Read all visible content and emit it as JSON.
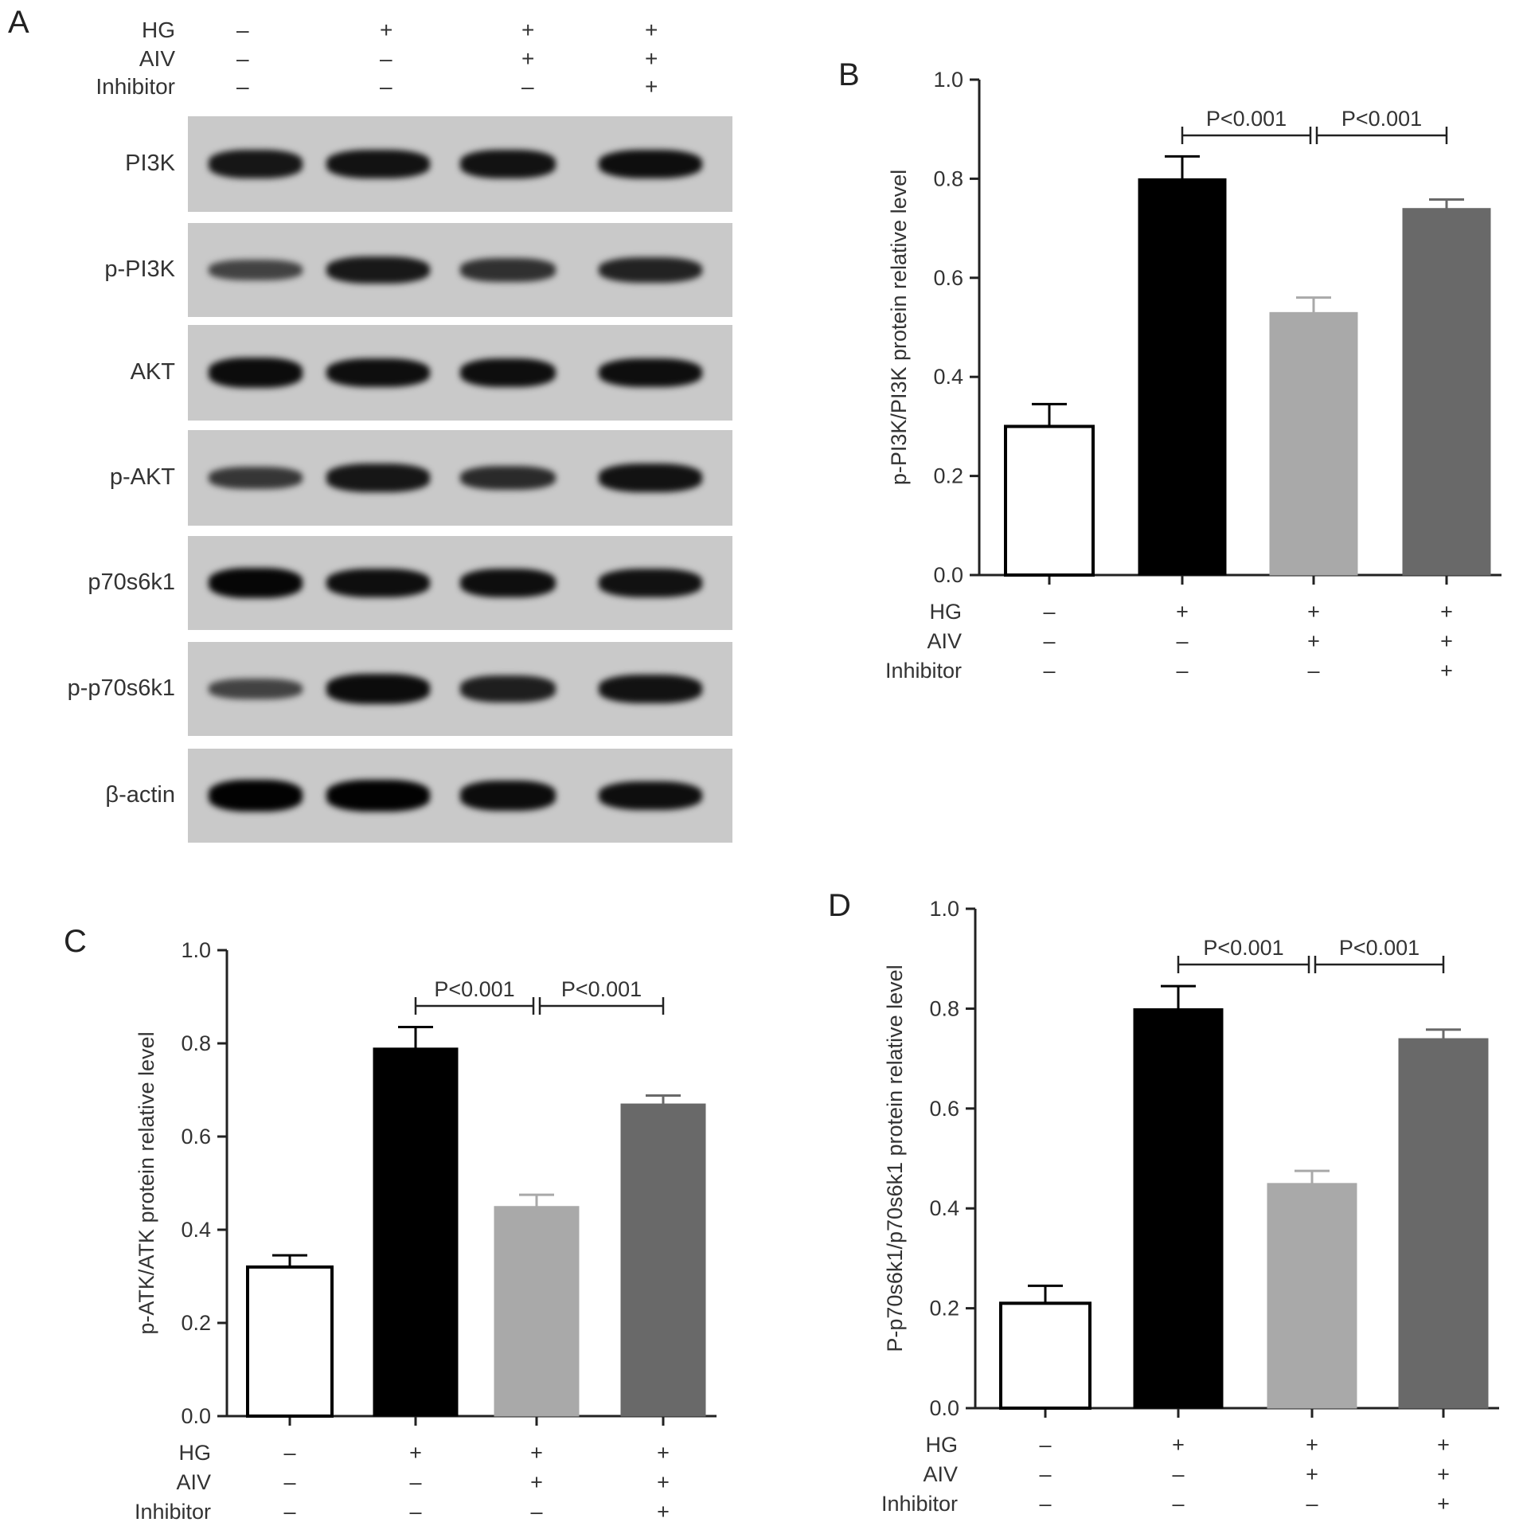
{
  "panel_letters": {
    "a": "A",
    "b": "B",
    "c": "C",
    "d": "D"
  },
  "conditions": {
    "labels": [
      "HG",
      "AIV",
      "Inhibitor"
    ],
    "signs": [
      [
        "–",
        "+",
        "+",
        "+"
      ],
      [
        "–",
        "–",
        "+",
        "+"
      ],
      [
        "–",
        "–",
        "–",
        "+"
      ]
    ]
  },
  "western_blot": {
    "proteins": [
      "PI3K",
      "p-PI3K",
      "AKT",
      "p-AKT",
      "p70s6k1",
      "p-p70s6k1",
      "β-actin"
    ],
    "band_intensity": [
      [
        0.82,
        0.85,
        0.85,
        0.88
      ],
      [
        0.45,
        0.8,
        0.6,
        0.72
      ],
      [
        0.9,
        0.88,
        0.88,
        0.88
      ],
      [
        0.55,
        0.82,
        0.65,
        0.85
      ],
      [
        0.95,
        0.88,
        0.88,
        0.86
      ],
      [
        0.45,
        0.9,
        0.75,
        0.85
      ],
      [
        0.98,
        0.98,
        0.9,
        0.88
      ]
    ]
  },
  "colors": {
    "bar_fills": [
      "#ffffff",
      "#000000",
      "#a9a9a9",
      "#696969"
    ],
    "blot_bg": "#c9c9c9"
  },
  "chart_data": [
    {
      "panel": "B",
      "type": "bar",
      "ylabel": "p-PI3K/PI3K protein relative level",
      "ylim": [
        0,
        1.0
      ],
      "yticks": [
        "0.0",
        "0.2",
        "0.4",
        "0.6",
        "0.8",
        "1.0"
      ],
      "values": [
        0.3,
        0.8,
        0.53,
        0.74
      ],
      "errors": [
        0.045,
        0.045,
        0.03,
        0.018
      ],
      "annotations": [
        {
          "from": 1,
          "to": 2,
          "label": "P<0.001"
        },
        {
          "from": 2,
          "to": 3,
          "label": "P<0.001"
        }
      ]
    },
    {
      "panel": "C",
      "type": "bar",
      "ylabel": "p-ATK/ATK protein relative level",
      "ylim": [
        0,
        1.0
      ],
      "yticks": [
        "0.0",
        "0.2",
        "0.4",
        "0.6",
        "0.8",
        "1.0"
      ],
      "values": [
        0.32,
        0.79,
        0.45,
        0.67
      ],
      "errors": [
        0.025,
        0.045,
        0.025,
        0.018
      ],
      "annotations": [
        {
          "from": 1,
          "to": 2,
          "label": "P<0.001"
        },
        {
          "from": 2,
          "to": 3,
          "label": "P<0.001"
        }
      ]
    },
    {
      "panel": "D",
      "type": "bar",
      "ylabel": "P-p70s6k1/p70s6k1 protein relative level",
      "ylim": [
        0,
        1.0
      ],
      "yticks": [
        "0.0",
        "0.2",
        "0.4",
        "0.6",
        "0.8",
        "1.0"
      ],
      "values": [
        0.21,
        0.8,
        0.45,
        0.74
      ],
      "errors": [
        0.035,
        0.045,
        0.025,
        0.018
      ],
      "annotations": [
        {
          "from": 1,
          "to": 2,
          "label": "P<0.001"
        },
        {
          "from": 2,
          "to": 3,
          "label": "P<0.001"
        }
      ]
    }
  ]
}
